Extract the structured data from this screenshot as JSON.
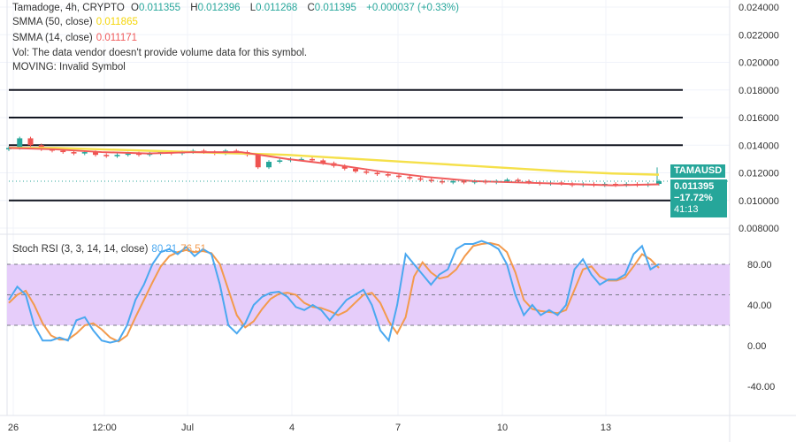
{
  "header": {
    "symbol_line": "Tamadoge, 4h, CRYPTO",
    "open_label": "O",
    "open": "0.011355",
    "high_label": "H",
    "high": "0.012396",
    "low_label": "L",
    "low": "0.011268",
    "close_label": "C",
    "close": "0.011395",
    "change": "+0.000037 (+0.33%)"
  },
  "indicators": {
    "smma50_label": "SMMA (50, close)",
    "smma50_value": "0.011865",
    "smma14_label": "SMMA (14, close)",
    "smma14_value": "0.011171",
    "vol_text": "Vol: The data vendor doesn't provide volume data for this symbol.",
    "moving_text": "MOVING: Invalid Symbol",
    "stoch_label": "Stoch RSI (3, 3, 14, 14, close)",
    "stoch_k": "80.21",
    "stoch_d": "76.51"
  },
  "price_tag": {
    "symbol": "TAMAUSD",
    "price": "0.011395",
    "change": "−17.72%",
    "countdown": "41:13"
  },
  "colors": {
    "up": "#26a69a",
    "down": "#ef5350",
    "smma50": "#f5e04a",
    "smma14": "#f05b5b",
    "k": "#4aa8f0",
    "d": "#f39a4c",
    "band": "#e6cdfa"
  },
  "chart_data": [
    {
      "type": "candlestick",
      "price_axis_ticks": [
        "0.024000",
        "0.022000",
        "0.020000",
        "0.018000",
        "0.016000",
        "0.014000",
        "0.012000",
        "0.010000",
        "0.008000"
      ],
      "ylim": [
        0.008,
        0.024
      ],
      "horizontal_lines": [
        0.018,
        0.016,
        0.014,
        0.01
      ],
      "x_ticks": [
        "26",
        "12:00",
        "Jul",
        "4",
        "7",
        "10",
        "13"
      ],
      "closes": [
        0.0138,
        0.0145,
        0.014,
        0.0137,
        0.0136,
        0.0135,
        0.0134,
        0.0135,
        0.0133,
        0.0132,
        0.0133,
        0.0134,
        0.0133,
        0.0134,
        0.0135,
        0.0134,
        0.0135,
        0.0136,
        0.0135,
        0.0134,
        0.0136,
        0.0135,
        0.0133,
        0.0124,
        0.0128,
        0.0129,
        0.013,
        0.013,
        0.0129,
        0.0127,
        0.0125,
        0.0123,
        0.0121,
        0.012,
        0.0119,
        0.0118,
        0.0117,
        0.0116,
        0.0115,
        0.0114,
        0.0113,
        0.0114,
        0.0113,
        0.0114,
        0.0113,
        0.0114,
        0.0115,
        0.0114,
        0.0113,
        0.0112,
        0.0113,
        0.0112,
        0.0111,
        0.0112,
        0.0111,
        0.0112,
        0.0111,
        0.0112,
        0.0111,
        0.0112,
        0.011395
      ],
      "smma50": [
        0.0138,
        0.0138,
        0.0137,
        0.0136,
        0.0135,
        0.0134,
        0.0133,
        0.0131,
        0.0129,
        0.0127,
        0.0125,
        0.0123,
        0.0121,
        0.01195,
        0.011865
      ],
      "smma14": [
        0.0138,
        0.0137,
        0.0135,
        0.0134,
        0.0135,
        0.0135,
        0.013,
        0.0126,
        0.0121,
        0.0117,
        0.0114,
        0.0113,
        0.0112,
        0.0111,
        0.011171
      ]
    },
    {
      "type": "line",
      "title": "Stoch RSI (3, 3, 14, 14, close)",
      "y_ticks": [
        "80.00",
        "40.00",
        "0.00",
        "-40.00"
      ],
      "ylim": [
        -50,
        110
      ],
      "band": [
        20,
        80
      ],
      "k": [
        45,
        58,
        50,
        20,
        5,
        5,
        8,
        5,
        25,
        28,
        15,
        5,
        3,
        5,
        20,
        45,
        60,
        80,
        92,
        95,
        90,
        97,
        88,
        95,
        90,
        60,
        20,
        12,
        22,
        40,
        48,
        52,
        53,
        48,
        38,
        35,
        40,
        35,
        25,
        35,
        45,
        50,
        55,
        40,
        15,
        5,
        40,
        90,
        80,
        70,
        60,
        70,
        75,
        95,
        100,
        100,
        103,
        100,
        95,
        80,
        50,
        30,
        40,
        30,
        35,
        30,
        40,
        75,
        85,
        70,
        60,
        65,
        65,
        70,
        90,
        98,
        75,
        80.21
      ],
      "d": [
        42,
        50,
        54,
        40,
        22,
        10,
        6,
        6,
        12,
        20,
        22,
        16,
        8,
        4,
        10,
        28,
        45,
        62,
        78,
        88,
        92,
        94,
        92,
        93,
        91,
        80,
        55,
        30,
        18,
        24,
        36,
        46,
        51,
        52,
        50,
        42,
        38,
        37,
        34,
        30,
        34,
        42,
        50,
        52,
        42,
        24,
        12,
        28,
        68,
        82,
        72,
        66,
        68,
        75,
        88,
        98,
        100,
        101,
        99,
        92,
        72,
        45,
        36,
        34,
        33,
        32,
        35,
        55,
        75,
        78,
        68,
        64,
        64,
        67,
        78,
        90,
        85,
        76.51
      ]
    }
  ]
}
